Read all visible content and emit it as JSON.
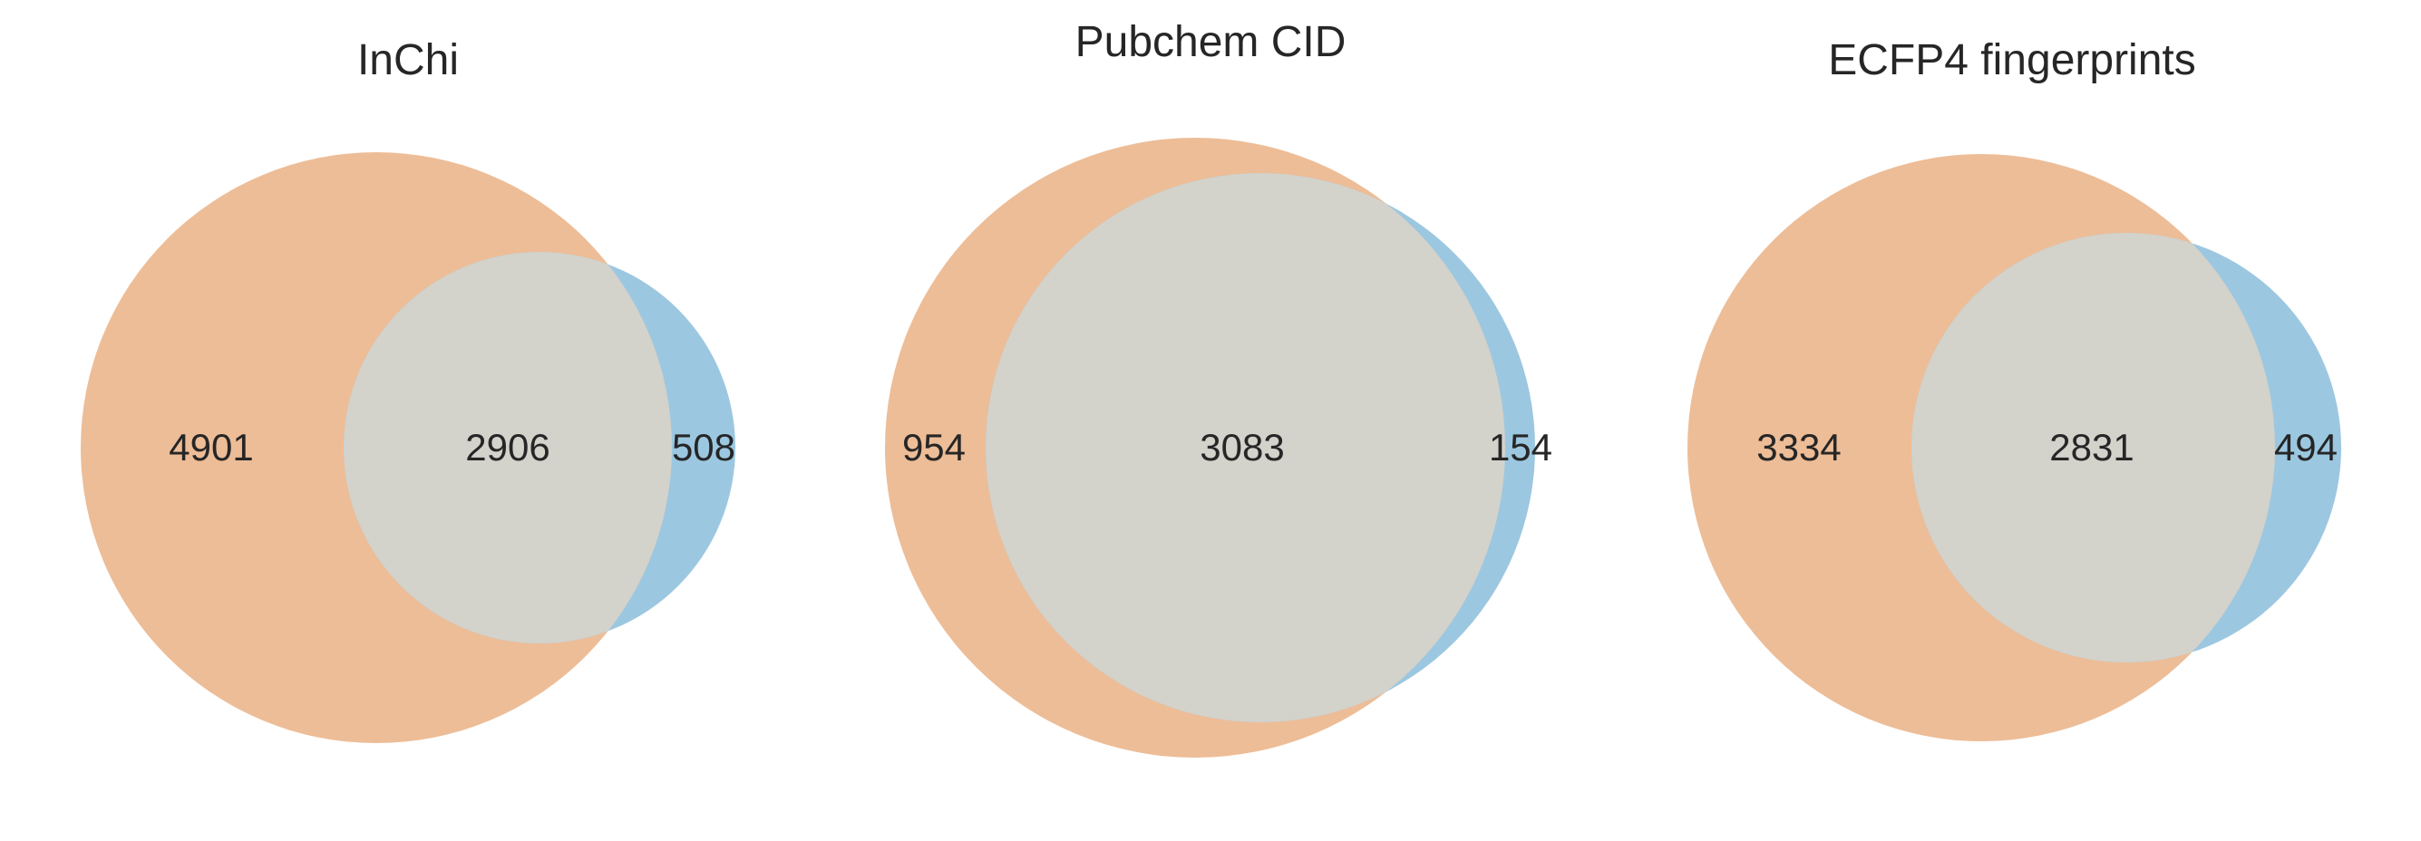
{
  "colors": {
    "set_a": "#edbd97",
    "set_b": "#9cc7e0",
    "overlap": "#d3d2cb"
  },
  "panels": [
    {
      "title": "InChi",
      "only_a": "4901",
      "both": "2906",
      "only_b": "508"
    },
    {
      "title": "Pubchem CID",
      "only_a": "954",
      "both": "3083",
      "only_b": "154"
    },
    {
      "title": "ECFP4 fingerprints",
      "only_a": "3334",
      "both": "2831",
      "only_b": "494"
    }
  ]
}
